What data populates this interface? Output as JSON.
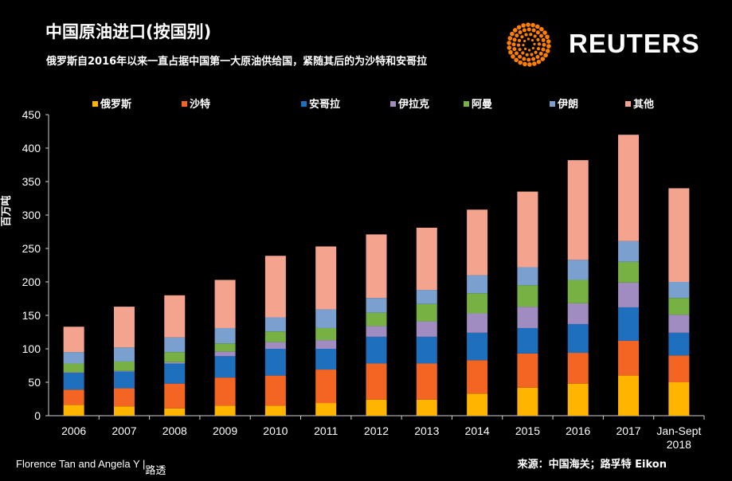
{
  "header": {
    "title": "中国原油进口(按国别)",
    "subtitle": "俄罗斯自2016年以来一直占据中国第一大原油供给国，紧随其后的为沙特和安哥拉"
  },
  "brand": {
    "name": "REUTERS",
    "logo_icon": "reuters-dot-sphere-icon",
    "logo_color": "#ff8000"
  },
  "footer": {
    "author": "Florence Tan and Angela Y |",
    "author_extra": "路透",
    "source": "来源：中国海关；路孚特 Eikon"
  },
  "chart_data": {
    "type": "bar",
    "stacked": true,
    "ylabel": "百万吨",
    "ylim": [
      0,
      450
    ],
    "yticks": [
      0,
      50,
      100,
      150,
      200,
      250,
      300,
      350,
      400,
      450
    ],
    "grid": false,
    "legend_position": "top",
    "categories": [
      "2006",
      "2007",
      "2008",
      "2009",
      "2010",
      "2011",
      "2012",
      "2013",
      "2014",
      "2015",
      "2016",
      "2017",
      "Jan-Sept 2018"
    ],
    "series": [
      {
        "name": "俄罗斯",
        "color": "#ffb400",
        "values": [
          16,
          14,
          11,
          15,
          15,
          19,
          24,
          24,
          33,
          42,
          48,
          60,
          50
        ]
      },
      {
        "name": "沙特",
        "color": "#f26522",
        "values": [
          23,
          27,
          37,
          42,
          45,
          50,
          54,
          54,
          50,
          51,
          46,
          52,
          40
        ]
      },
      {
        "name": "安哥拉",
        "color": "#1f6fbf",
        "values": [
          25,
          25,
          30,
          32,
          40,
          31,
          40,
          40,
          41,
          38,
          43,
          50,
          34
        ]
      },
      {
        "name": "伊拉克",
        "color": "#a08cc0",
        "values": [
          1,
          1,
          2,
          7,
          10,
          13,
          16,
          23,
          29,
          32,
          31,
          37,
          27
        ]
      },
      {
        "name": "阿曼",
        "color": "#77b043",
        "values": [
          13,
          14,
          15,
          12,
          16,
          18,
          20,
          26,
          30,
          32,
          35,
          31,
          25
        ]
      },
      {
        "name": "伊朗",
        "color": "#7aa0d0",
        "values": [
          17,
          21,
          22,
          23,
          21,
          28,
          22,
          21,
          27,
          27,
          30,
          31,
          24
        ]
      },
      {
        "name": "其他",
        "color": "#f4a38e",
        "values": [
          38,
          61,
          63,
          72,
          92,
          94,
          95,
          93,
          98,
          113,
          149,
          159,
          140
        ]
      }
    ]
  }
}
